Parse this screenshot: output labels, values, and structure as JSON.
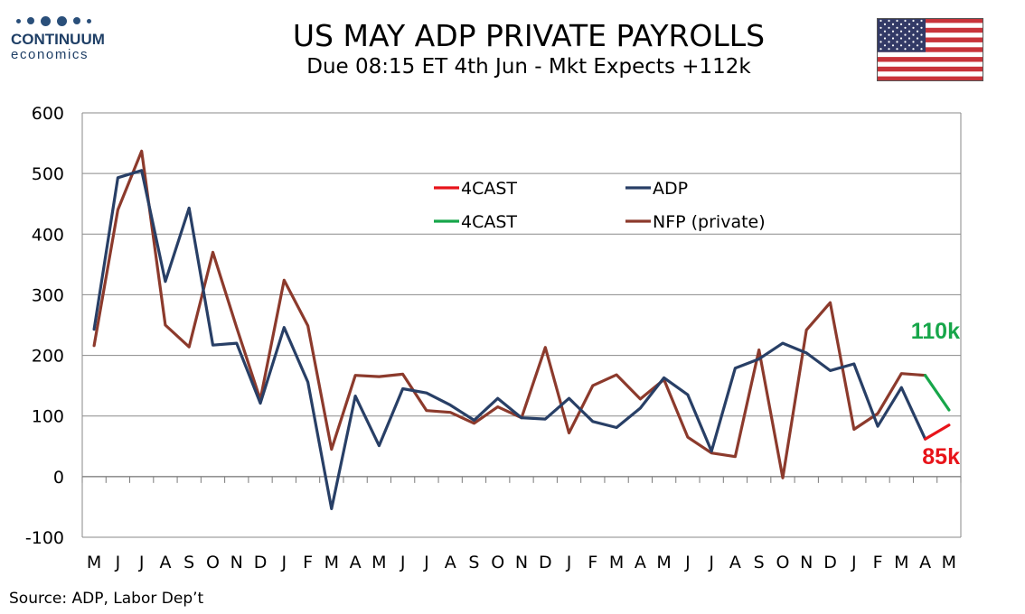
{
  "logo": {
    "name": "CONTINUUM",
    "sub": "economics"
  },
  "title": "US MAY ADP PRIVATE PAYROLLS",
  "subtitle": "Due 08:15 ET 4th Jun - Mkt Expects +112k",
  "source": "Source: ADP, Labor Dep’t",
  "colors": {
    "adp": "#283f66",
    "nfp": "#8c3a2c",
    "forecast_adp": "#e8141a",
    "forecast_nfp": "#17a64a",
    "grid": "#8a8a8a"
  },
  "chart_data": {
    "type": "line",
    "categories": [
      "M",
      "J",
      "J",
      "A",
      "S",
      "O",
      "N",
      "D",
      "J",
      "F",
      "M",
      "A",
      "M",
      "J",
      "J",
      "A",
      "S",
      "O",
      "N",
      "D",
      "J",
      "F",
      "M",
      "A",
      "M",
      "J",
      "J",
      "A",
      "S",
      "O",
      "N",
      "D",
      "J",
      "F",
      "M",
      "A",
      "M"
    ],
    "ylim": [
      -100,
      600
    ],
    "yticks": [
      -100,
      0,
      100,
      200,
      300,
      400,
      500,
      600
    ],
    "grid": true,
    "legend_position": "top-center",
    "series": [
      {
        "name": "ADP",
        "color": "#283f66",
        "values": [
          243,
          493,
          505,
          322,
          443,
          217,
          220,
          121,
          246,
          156,
          -53,
          133,
          51,
          145,
          138,
          118,
          93,
          129,
          97,
          95,
          129,
          91,
          81,
          113,
          163,
          135,
          42,
          179,
          194,
          220,
          204,
          175,
          186,
          83,
          147,
          62,
          null
        ]
      },
      {
        "name": "NFP (private)",
        "color": "#8c3a2c",
        "values": [
          216,
          440,
          537,
          250,
          214,
          370,
          246,
          127,
          324,
          249,
          45,
          167,
          165,
          169,
          109,
          106,
          88,
          115,
          97,
          213,
          72,
          150,
          168,
          128,
          160,
          65,
          39,
          33,
          209,
          -2,
          242,
          287,
          78,
          104,
          170,
          167,
          null
        ]
      },
      {
        "name": "4CAST",
        "color": "#e8141a",
        "forecast_of": "ADP",
        "values": [
          null,
          null,
          null,
          null,
          null,
          null,
          null,
          null,
          null,
          null,
          null,
          null,
          null,
          null,
          null,
          null,
          null,
          null,
          null,
          null,
          null,
          null,
          null,
          null,
          null,
          null,
          null,
          null,
          null,
          null,
          null,
          null,
          null,
          null,
          null,
          62,
          85
        ]
      },
      {
        "name": "4CAST",
        "color": "#17a64a",
        "forecast_of": "NFP (private)",
        "values": [
          null,
          null,
          null,
          null,
          null,
          null,
          null,
          null,
          null,
          null,
          null,
          null,
          null,
          null,
          null,
          null,
          null,
          null,
          null,
          null,
          null,
          null,
          null,
          null,
          null,
          null,
          null,
          null,
          null,
          null,
          null,
          null,
          null,
          null,
          null,
          167,
          110
        ]
      }
    ],
    "legend": [
      "4CAST",
      "ADP",
      "4CAST",
      "NFP (private)"
    ],
    "annotations": [
      {
        "text": "110k",
        "color": "#17a64a"
      },
      {
        "text": "85k",
        "color": "#e8141a"
      }
    ]
  }
}
